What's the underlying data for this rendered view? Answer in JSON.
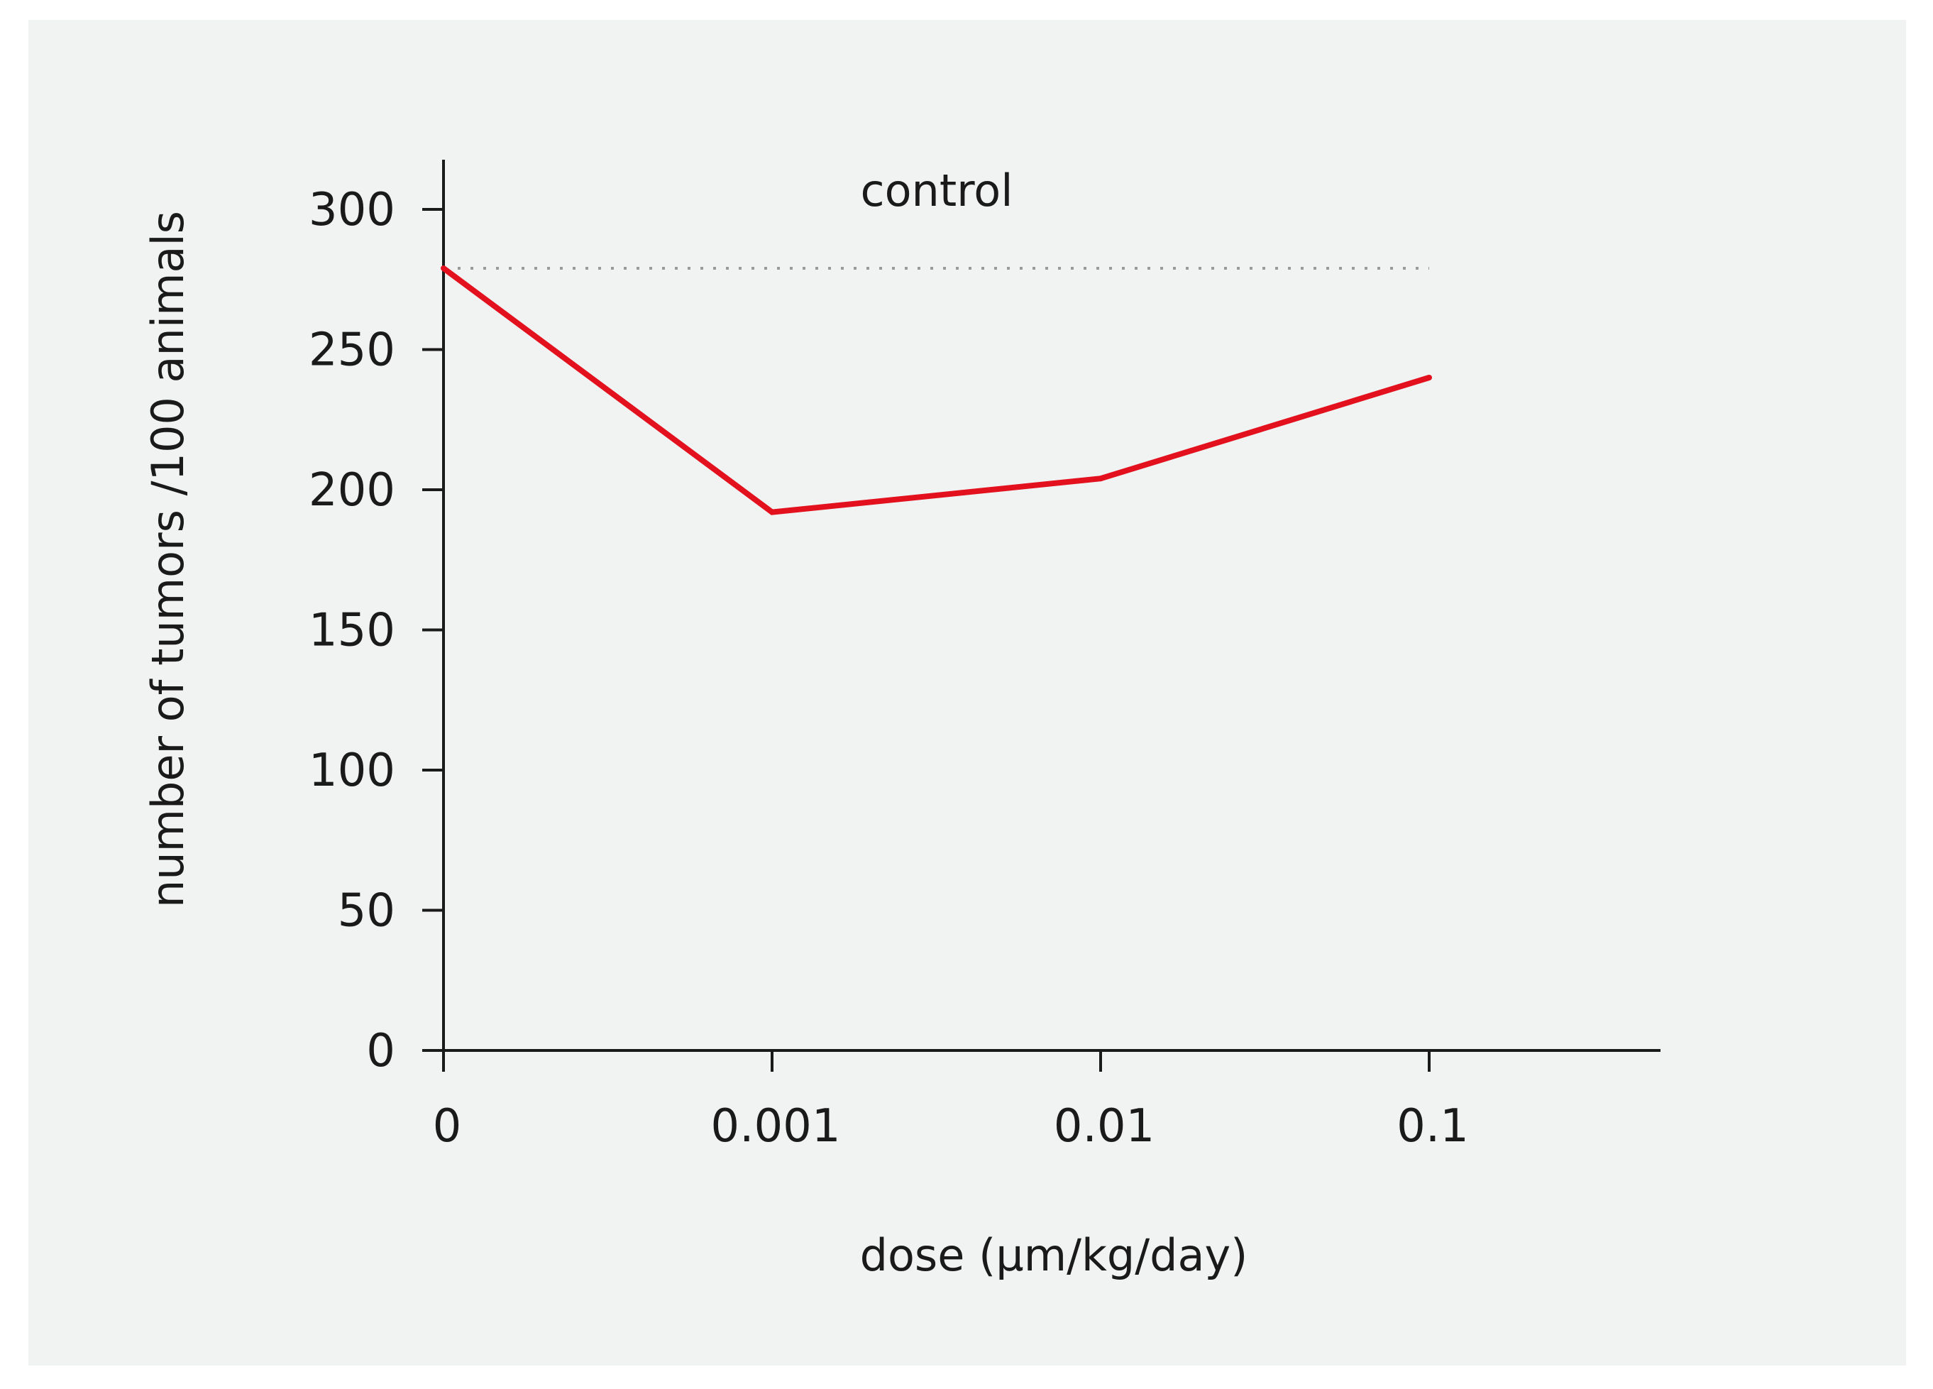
{
  "chart_data": {
    "type": "line",
    "xlabel": "dose (µm/kg/day)",
    "ylabel": "number of tumors /100 animals",
    "categories": [
      "0",
      "0.001",
      "0.01",
      "0.1"
    ],
    "series": [
      {
        "values": [
          279,
          192,
          204,
          240
        ]
      }
    ],
    "reference_line": {
      "label": "control",
      "value": 279,
      "style": "dotted"
    },
    "yticks": [
      0,
      50,
      100,
      150,
      200,
      250,
      300
    ],
    "ylim": [
      0,
      316
    ],
    "grid": false,
    "colors": {
      "series": "#e3101e",
      "axis": "#1a1a1a",
      "reference": "#9a9a9a",
      "panel_bg": "#f1f2f2",
      "page_bg": "#ffffff"
    }
  }
}
